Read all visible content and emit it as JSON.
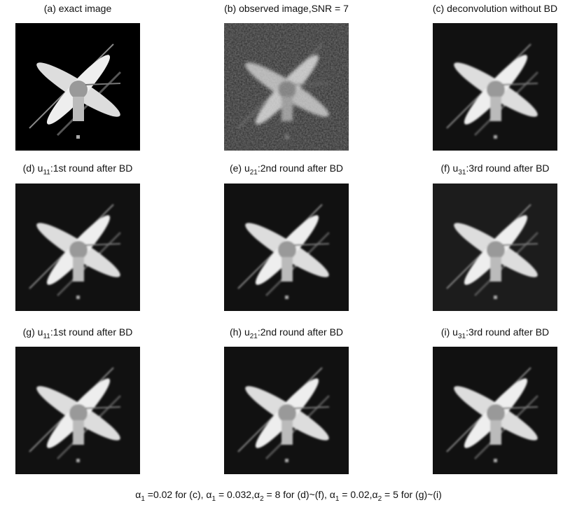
{
  "panels": [
    {
      "caption": [
        "(a) exact image"
      ]
    },
    {
      "caption": [
        "(b) observed image,SNR = 7"
      ]
    },
    {
      "caption": [
        "(c) deconvolution without BD"
      ]
    },
    {
      "caption": [
        "(d) u",
        "11",
        ":1st round after BD"
      ]
    },
    {
      "caption": [
        "(e) u",
        "21",
        ":2nd round after BD"
      ]
    },
    {
      "caption": [
        "(f) u",
        "31",
        ":3rd round after BD"
      ]
    },
    {
      "caption": [
        "(g) u",
        "11",
        ":1st round after BD"
      ]
    },
    {
      "caption": [
        "(h) u",
        "21",
        ":2nd round after BD"
      ]
    },
    {
      "caption": [
        "(i) u",
        "31",
        ":3rd round after BD"
      ]
    }
  ],
  "footnote": [
    "α",
    "1",
    " =0.02 for (c), α",
    "1",
    " = 0.032,α",
    "2",
    " = 8 for (d)~(f), α",
    "1",
    " = 0.02,α",
    "2",
    " = 5 for (g)~(i)"
  ]
}
